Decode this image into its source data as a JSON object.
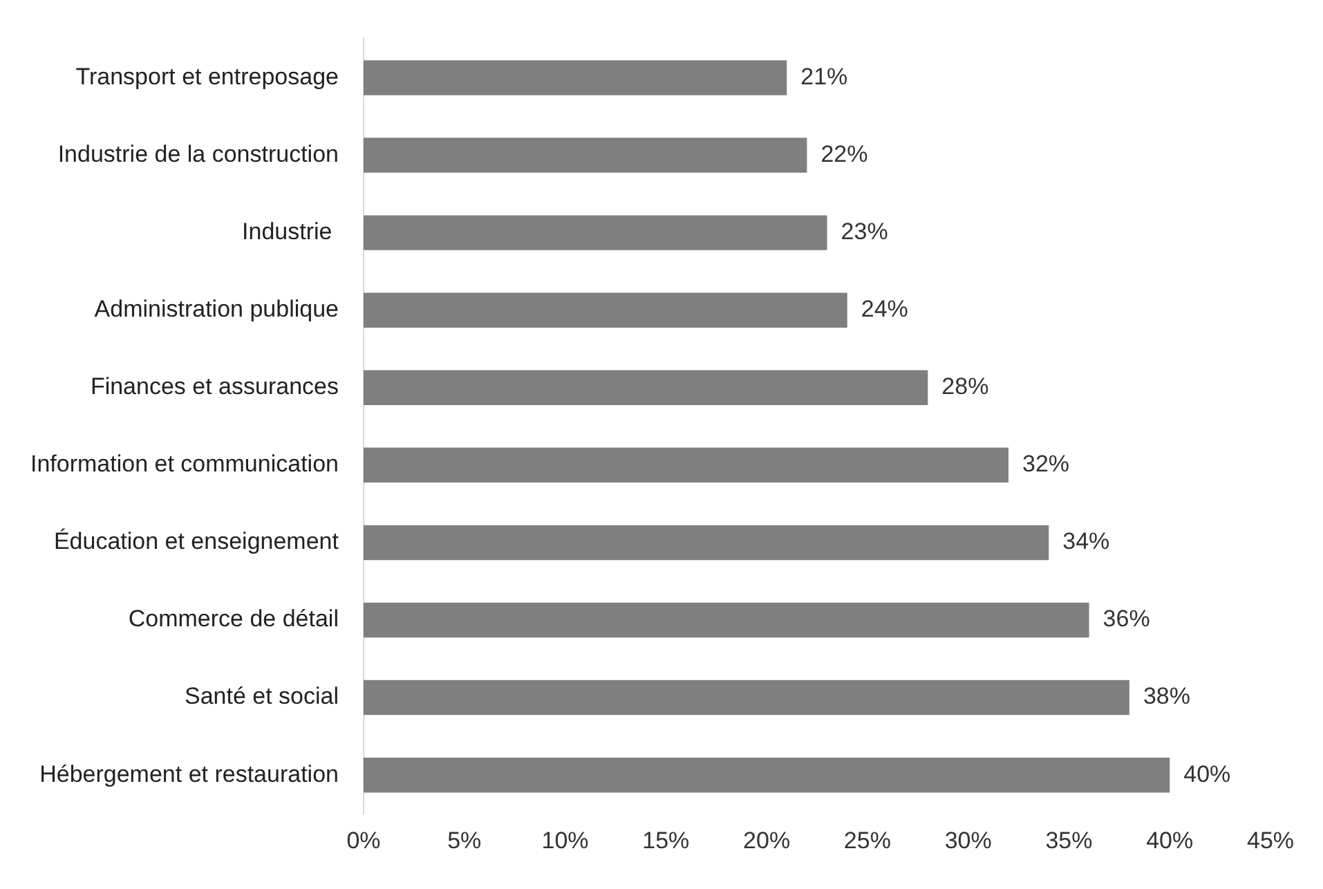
{
  "chart_data": {
    "type": "bar",
    "orientation": "horizontal",
    "categories": [
      "Transport et entreposage",
      "Industrie de la construction",
      "Industrie ",
      "Administration publique",
      "Finances et assurances",
      "Information et communication",
      "Éducation et enseignement",
      "Commerce de détail",
      "Santé et social",
      "Hébergement et restauration"
    ],
    "values": [
      21,
      22,
      23,
      24,
      28,
      32,
      34,
      36,
      38,
      40
    ],
    "value_labels": [
      "21%",
      "22%",
      "23%",
      "24%",
      "28%",
      "32%",
      "34%",
      "36%",
      "38%",
      "40%"
    ],
    "color": "#7f7f7f",
    "xlim": [
      0,
      45
    ],
    "xticks": [
      {
        "value": 0,
        "label": "0%"
      },
      {
        "value": 5,
        "label": "5%"
      },
      {
        "value": 10,
        "label": "10%"
      },
      {
        "value": 15,
        "label": "15%"
      },
      {
        "value": 20,
        "label": "20%"
      },
      {
        "value": 25,
        "label": "25%"
      },
      {
        "value": 30,
        "label": "30%"
      },
      {
        "value": 35,
        "label": "35%"
      },
      {
        "value": 40,
        "label": "40%"
      },
      {
        "value": 45,
        "label": "45%"
      }
    ]
  }
}
